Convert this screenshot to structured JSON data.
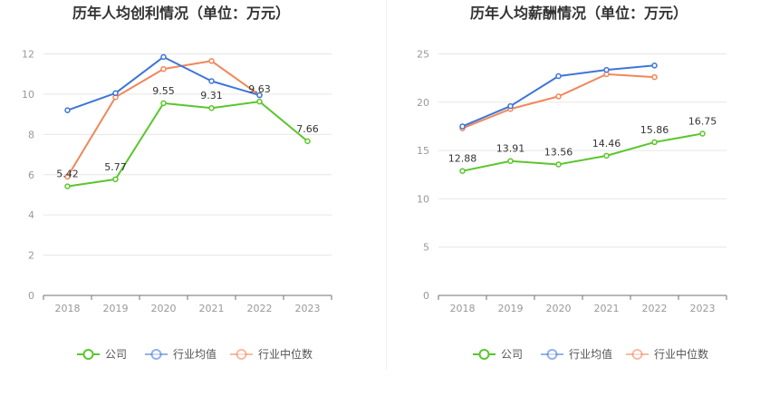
{
  "chart_data": [
    {
      "type": "line",
      "title": "历年人均创利情况（单位：万元）",
      "categories": [
        "2018",
        "2019",
        "2020",
        "2021",
        "2022",
        "2023"
      ],
      "ylim": [
        0,
        12
      ],
      "yticks": [
        0,
        2,
        4,
        6,
        8,
        10,
        12
      ],
      "grid": true,
      "legend_position": "bottom",
      "series": [
        {
          "name": "公司",
          "color": "#5ac62c",
          "values": [
            5.42,
            5.77,
            9.55,
            9.31,
            9.63,
            7.66
          ],
          "labels": [
            "5.42",
            "5.77",
            "9.55",
            "9.31",
            "9.63",
            "7.66"
          ]
        },
        {
          "name": "行业均值",
          "color": "#3f75d6",
          "values": [
            9.2,
            10.05,
            11.85,
            10.65,
            9.95,
            null
          ]
        },
        {
          "name": "行业中位数",
          "color": "#f0875a",
          "values": [
            5.9,
            9.85,
            11.25,
            11.65,
            9.95,
            null
          ]
        }
      ]
    },
    {
      "type": "line",
      "title": "历年人均薪酬情况（单位：万元）",
      "categories": [
        "2018",
        "2019",
        "2020",
        "2021",
        "2022",
        "2023"
      ],
      "ylim": [
        0,
        25
      ],
      "yticks": [
        0,
        5,
        10,
        15,
        20,
        25
      ],
      "grid": true,
      "legend_position": "bottom",
      "series": [
        {
          "name": "公司",
          "color": "#5ac62c",
          "values": [
            12.88,
            13.91,
            13.56,
            14.46,
            15.86,
            16.75
          ],
          "labels": [
            "12.88",
            "13.91",
            "13.56",
            "14.46",
            "15.86",
            "16.75"
          ]
        },
        {
          "name": "行业均值",
          "color": "#3f75d6",
          "values": [
            17.5,
            19.6,
            22.7,
            23.35,
            23.8,
            null
          ]
        },
        {
          "name": "行业中位数",
          "color": "#f0875a",
          "values": [
            17.3,
            19.3,
            20.6,
            22.9,
            22.6,
            null
          ]
        }
      ]
    }
  ]
}
